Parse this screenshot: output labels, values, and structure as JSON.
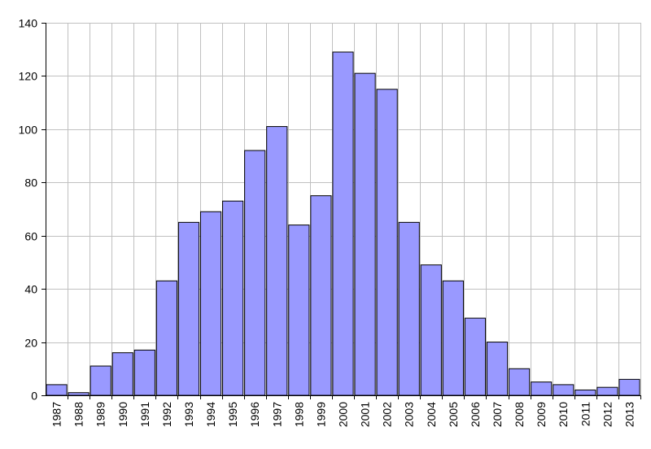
{
  "chart_data": {
    "type": "bar",
    "title": "",
    "xlabel": "",
    "ylabel": "",
    "categories": [
      "1987",
      "1988",
      "1989",
      "1990",
      "1991",
      "1992",
      "1993",
      "1994",
      "1995",
      "1996",
      "1997",
      "1998",
      "1999",
      "2000",
      "2001",
      "2002",
      "2003",
      "2004",
      "2005",
      "2006",
      "2007",
      "2008",
      "2009",
      "2010",
      "2011",
      "2012",
      "2013"
    ],
    "values": [
      4,
      1,
      11,
      16,
      17,
      43,
      65,
      69,
      73,
      92,
      101,
      64,
      75,
      129,
      121,
      115,
      65,
      49,
      43,
      29,
      20,
      10,
      5,
      4,
      2,
      3,
      6
    ],
    "ylim": [
      0,
      140
    ],
    "yticks": [
      0,
      20,
      40,
      60,
      80,
      100,
      120,
      140
    ],
    "ytick_labels": [
      "0",
      "20",
      "40",
      "60",
      "80",
      "100",
      "120",
      "140"
    ],
    "grid": true,
    "legend": "none",
    "colors": {
      "bar_fill": "#9999ff",
      "bar_stroke": "#000000",
      "grid": "#c0c0c0",
      "axis": "#000000"
    }
  }
}
